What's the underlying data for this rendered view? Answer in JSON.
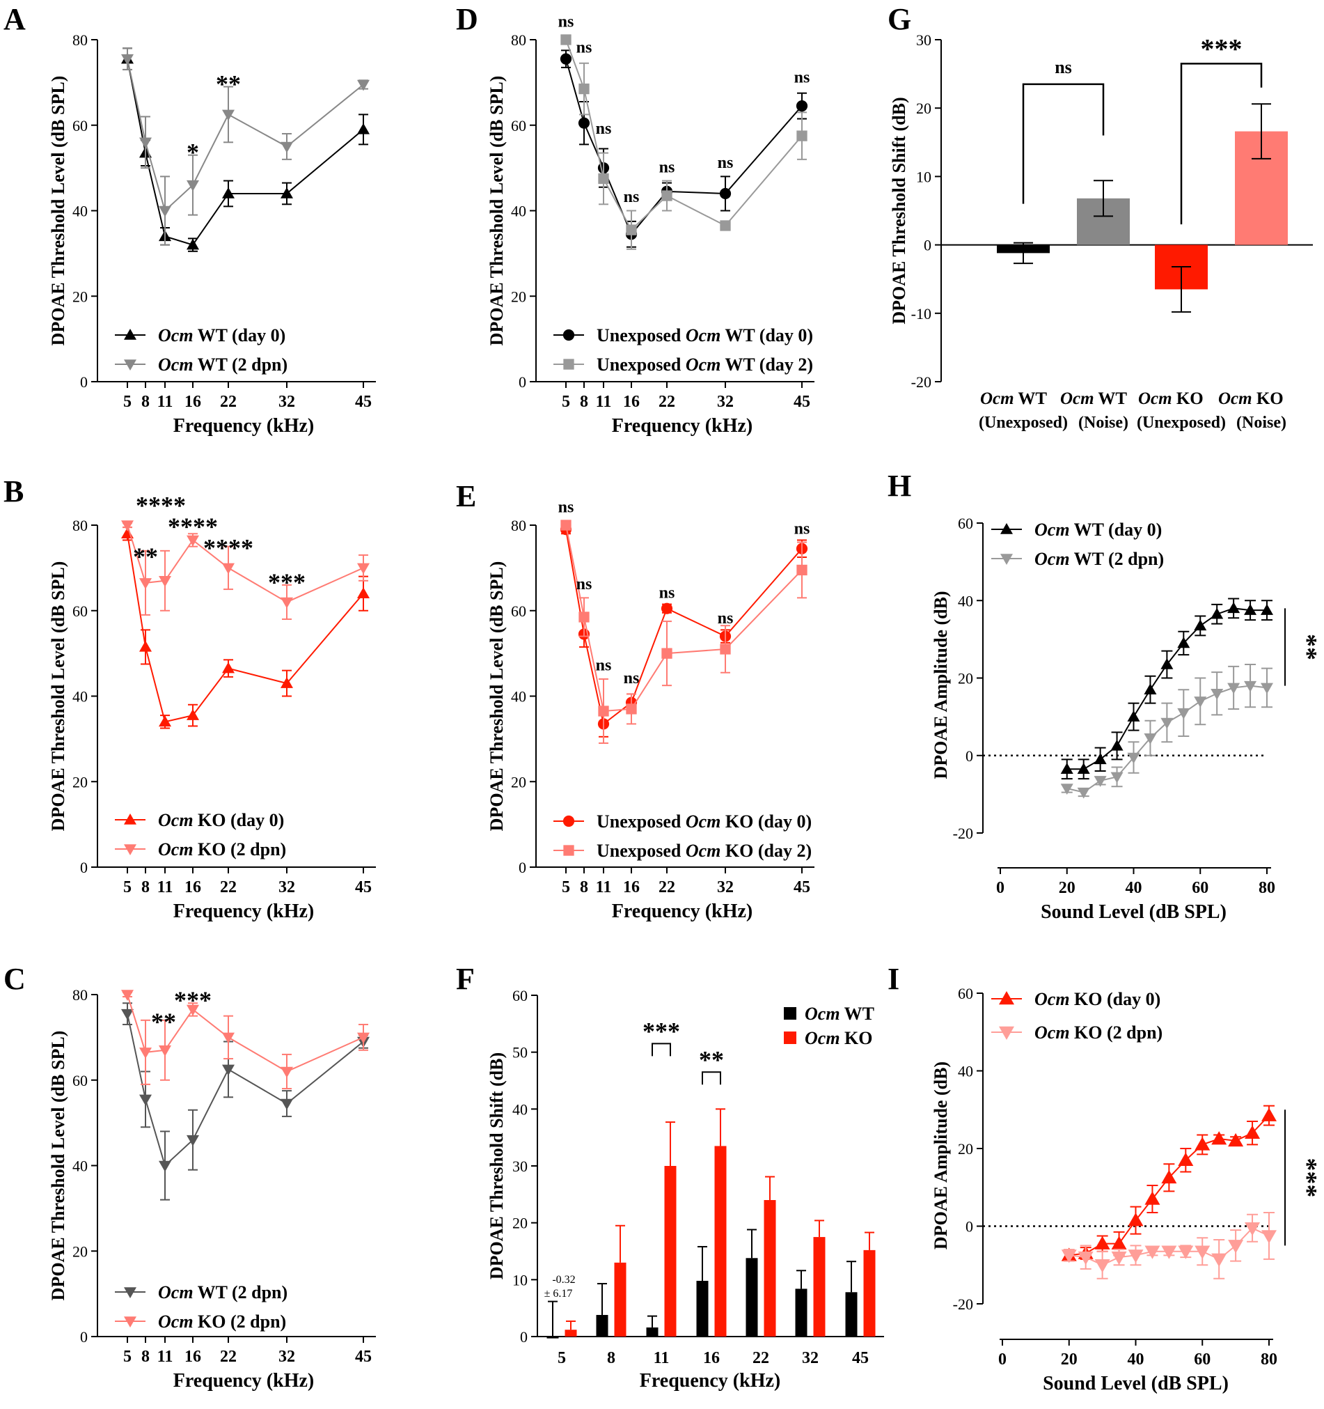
{
  "figure": {
    "colors": {
      "black": "#000000",
      "grey": "#888888",
      "dark_grey": "#555555",
      "red": "#ff1a00",
      "pink": "#ff7b73",
      "light_pink": "#ff9e98"
    }
  },
  "chart_data": [
    {
      "panel": "A",
      "type": "line",
      "ylabel": "DPOAE Threshold Level (dB SPL)",
      "xlabel": "Frequency (kHz)",
      "ylim": [
        0,
        80
      ],
      "yticks": [
        "0",
        "20",
        "40",
        "60",
        "80"
      ],
      "categories": [
        "5",
        "8",
        "11",
        "16",
        "22",
        "32",
        "45"
      ],
      "series": [
        {
          "name": "Ocm WT (day 0)",
          "gene": "Ocm",
          "rest": " WT (day 0)",
          "marker": "tri-up",
          "color": "#000000",
          "values": [
            75.5,
            53.5,
            34,
            32,
            44,
            44,
            59
          ],
          "err": [
            2.5,
            3,
            2,
            1.5,
            3,
            2.5,
            3.5
          ]
        },
        {
          "name": "Ocm WT (2 dpn)",
          "gene": "Ocm",
          "rest": " WT (2 dpn)",
          "marker": "tri-down",
          "color": "#888888",
          "values": [
            75.5,
            56,
            40,
            46,
            62.5,
            55,
            69.5
          ],
          "err": [
            2.5,
            6,
            8,
            7,
            6.5,
            3,
            1
          ]
        }
      ],
      "annotations": [
        {
          "cat": 3,
          "text": "*",
          "y": 54
        },
        {
          "cat": 4,
          "text": "**",
          "y": 70
        }
      ]
    },
    {
      "panel": "B",
      "type": "line",
      "ylabel": "DPOAE Threshold Level (dB SPL)",
      "xlabel": "Frequency (kHz)",
      "ylim": [
        0,
        80
      ],
      "yticks": [
        "0",
        "20",
        "40",
        "60",
        "80"
      ],
      "categories": [
        "5",
        "8",
        "11",
        "16",
        "22",
        "32",
        "45"
      ],
      "series": [
        {
          "name": "Ocm KO (day 0)",
          "gene": "Ocm",
          "rest": " KO (day 0)",
          "marker": "tri-up",
          "color": "#ff1a00",
          "values": [
            78,
            51.5,
            34,
            35.5,
            46.5,
            43,
            64
          ],
          "err": [
            1.5,
            4,
            1.5,
            2.5,
            2,
            3,
            4
          ]
        },
        {
          "name": "Ocm KO (2 dpn)",
          "gene": "Ocm",
          "rest": " KO (2 dpn)",
          "marker": "tri-down",
          "color": "#ff7b73",
          "values": [
            80,
            66.5,
            67,
            76.5,
            70,
            62,
            70
          ],
          "err": [
            0.5,
            7.5,
            7,
            1.5,
            5,
            4,
            3
          ]
        }
      ],
      "annotations": [
        {
          "cat": 1,
          "text": "**",
          "y": 73,
          "dx": 0
        },
        {
          "cat": 1,
          "text": "****",
          "y": 85,
          "dx": 22
        },
        {
          "cat": 3,
          "text": "****",
          "y": 80,
          "dx": 0
        },
        {
          "cat": 4,
          "text": "****",
          "y": 75,
          "dx": 0
        },
        {
          "cat": 5,
          "text": "***",
          "y": 67,
          "dx": 0
        }
      ]
    },
    {
      "panel": "C",
      "type": "line",
      "ylabel": "DPOAE Threshold Level (dB SPL)",
      "xlabel": "Frequency (kHz)",
      "ylim": [
        0,
        80
      ],
      "yticks": [
        "0",
        "20",
        "40",
        "60",
        "80"
      ],
      "categories": [
        "5",
        "8",
        "11",
        "16",
        "22",
        "32",
        "45"
      ],
      "series": [
        {
          "name": "Ocm WT (2 dpn)",
          "gene": "Ocm",
          "rest": " WT (2 dpn)",
          "marker": "tri-down",
          "color": "#555555",
          "values": [
            75.5,
            55.5,
            40,
            46,
            62.5,
            54.5,
            69
          ],
          "err": [
            2.5,
            6.5,
            8,
            7,
            6.5,
            3,
            1.5
          ]
        },
        {
          "name": "Ocm KO (2 dpn)",
          "gene": "Ocm",
          "rest": " KO (2 dpn)",
          "marker": "tri-down",
          "color": "#ff7b73",
          "values": [
            80,
            66.5,
            67,
            76.5,
            70,
            62,
            70
          ],
          "err": [
            0.5,
            7.5,
            7,
            1.5,
            5,
            4,
            3
          ]
        }
      ],
      "annotations": [
        {
          "cat": 2,
          "text": "**",
          "y": 74,
          "dx": -2
        },
        {
          "cat": 3,
          "text": "***",
          "y": 79,
          "dx": 0
        }
      ]
    },
    {
      "panel": "D",
      "type": "line",
      "ylabel": "DPOAE Threshold Level (dB SPL)",
      "xlabel": "Frequency (kHz)",
      "ylim": [
        0,
        80
      ],
      "yticks": [
        "0",
        "20",
        "40",
        "60",
        "80"
      ],
      "categories": [
        "5",
        "8",
        "11",
        "16",
        "22",
        "32",
        "45"
      ],
      "series": [
        {
          "name": "Unexposed Ocm WT (day 0)",
          "pre": "Unexposed ",
          "gene": "Ocm",
          "rest": " WT (day 0)",
          "marker": "circle",
          "color": "#000000",
          "values": [
            75.5,
            60.5,
            50,
            34.5,
            44.5,
            44,
            64.5
          ],
          "err": [
            2,
            5,
            4.5,
            3,
            2,
            4,
            3
          ]
        },
        {
          "name": "Unexposed Ocm WT (day 2)",
          "pre": "Unexposed ",
          "gene": "Ocm",
          "rest": " WT (day 2)",
          "marker": "square",
          "color": "#999999",
          "values": [
            80,
            68.5,
            47.5,
            35.5,
            43.5,
            36.5,
            57.5
          ],
          "err": [
            0.5,
            6,
            6,
            4.5,
            3.5,
            1,
            5.5
          ]
        }
      ],
      "annotations": [
        {
          "cat": 0,
          "text": "ns",
          "y": 83
        },
        {
          "cat": 1,
          "text": "ns",
          "y": 77
        },
        {
          "cat": 2,
          "text": "ns",
          "y": 58
        },
        {
          "cat": 3,
          "text": "ns",
          "y": 42
        },
        {
          "cat": 4,
          "text": "ns",
          "y": 49
        },
        {
          "cat": 5,
          "text": "ns",
          "y": 50
        },
        {
          "cat": 6,
          "text": "ns",
          "y": 70
        }
      ]
    },
    {
      "panel": "E",
      "type": "line",
      "ylabel": "DPOAE Threshold Level (dB SPL)",
      "xlabel": "Frequency (kHz)",
      "ylim": [
        0,
        80
      ],
      "yticks": [
        "0",
        "20",
        "40",
        "60",
        "80"
      ],
      "categories": [
        "5",
        "8",
        "11",
        "16",
        "22",
        "32",
        "45"
      ],
      "series": [
        {
          "name": "Unexposed Ocm KO (day 0)",
          "pre": "Unexposed ",
          "gene": "Ocm",
          "rest": " KO (day 0)",
          "marker": "circle",
          "color": "#ff1a00",
          "values": [
            79,
            54.5,
            33.5,
            38.5,
            60.5,
            54,
            74.5
          ],
          "err": [
            1,
            3,
            3,
            2,
            1,
            1.5,
            2
          ]
        },
        {
          "name": "Unexposed Ocm KO (day 2)",
          "pre": "Unexposed ",
          "gene": "Ocm",
          "rest": " KO (day 2)",
          "marker": "square",
          "color": "#ff7b73",
          "values": [
            80,
            58.5,
            36.5,
            37,
            50,
            51,
            69.5
          ],
          "err": [
            0.5,
            4.5,
            7.5,
            3.5,
            7.5,
            5.5,
            6.5
          ]
        }
      ],
      "annotations": [
        {
          "cat": 0,
          "text": "ns",
          "y": 83
        },
        {
          "cat": 1,
          "text": "ns",
          "y": 65
        },
        {
          "cat": 2,
          "text": "ns",
          "y": 46
        },
        {
          "cat": 3,
          "text": "ns",
          "y": 43
        },
        {
          "cat": 4,
          "text": "ns",
          "y": 63
        },
        {
          "cat": 5,
          "text": "ns",
          "y": 57
        },
        {
          "cat": 6,
          "text": "ns",
          "y": 78
        }
      ]
    },
    {
      "panel": "F",
      "type": "bar",
      "ylabel": "DPOAE Threshold Shift (dB)",
      "xlabel": "Frequency (kHz)",
      "ylim": [
        0,
        60
      ],
      "yticks": [
        "0",
        "10",
        "20",
        "30",
        "40",
        "50",
        "60"
      ],
      "categories": [
        "5",
        "8",
        "11",
        "16",
        "22",
        "32",
        "45"
      ],
      "series": [
        {
          "name": "Ocm WT",
          "gene": "Ocm",
          "rest": " WT",
          "color": "#000000",
          "values": [
            -0.32,
            3.8,
            1.6,
            9.8,
            13.8,
            8.4,
            7.8
          ],
          "err": [
            6.17,
            5.5,
            2,
            6,
            5,
            3.2,
            5.4
          ]
        },
        {
          "name": "Ocm KO",
          "gene": "Ocm",
          "rest": " KO",
          "color": "#ff1a00",
          "values": [
            1.2,
            13,
            30,
            33.5,
            24,
            17.5,
            15.2
          ],
          "err": [
            1.5,
            6.5,
            7.7,
            6.5,
            4.1,
            2.9,
            3.1
          ]
        }
      ],
      "value_label": [
        "-0.32",
        "± 6.17"
      ],
      "brackets": [
        {
          "cat": 2,
          "text": "***",
          "y": 51.5
        },
        {
          "cat": 3,
          "text": "**",
          "y": 46.5
        }
      ]
    },
    {
      "panel": "G",
      "type": "bar",
      "ylabel": "DPOAE Threshold Shift (dB)",
      "ylim": [
        -20,
        30
      ],
      "yticks": [
        "-20",
        "-10",
        "0",
        "10",
        "20",
        "30"
      ],
      "bars": [
        {
          "name": "Ocm WT (Unexposed)",
          "gene": "Ocm",
          "rest": " WT",
          "sub": "(Unexposed)",
          "value": -1.2,
          "err": 1.5,
          "color": "#000000"
        },
        {
          "name": "Ocm WT (Noise)",
          "gene": "Ocm",
          "rest": " WT",
          "sub": "(Noise)",
          "value": 6.8,
          "err": 2.6,
          "color": "#888888"
        },
        {
          "name": "Ocm KO (Unexposed)",
          "gene": "Ocm",
          "rest": " KO",
          "sub": "(Unexposed)",
          "value": -6.5,
          "err": 3.3,
          "color": "#ff1a00"
        },
        {
          "name": "Ocm KO (Noise)",
          "gene": "Ocm",
          "rest": " KO",
          "sub": "(Noise)",
          "value": 16.6,
          "err": 4,
          "color": "#ff7b73"
        }
      ],
      "brackets": [
        {
          "from": 0,
          "to": 1,
          "y": 23.5,
          "text": "ns",
          "from_end": 6,
          "to_end": 16
        },
        {
          "from": 2,
          "to": 3,
          "y": 26.5,
          "text": "***",
          "from_end": 3,
          "to_end": 23
        }
      ]
    },
    {
      "panel": "H",
      "type": "line",
      "ylabel": "DPOAE Amplitude (dB)",
      "xlabel": "Sound Level (dB SPL)",
      "xlim": [
        0,
        80
      ],
      "xticks": [
        "0",
        "20",
        "40",
        "60",
        "80"
      ],
      "ylim": [
        -20,
        60
      ],
      "yticks": [
        "-20",
        "0",
        "20",
        "40",
        "60"
      ],
      "x": [
        20,
        25,
        30,
        35,
        40,
        45,
        50,
        55,
        60,
        65,
        70,
        75,
        80
      ],
      "series": [
        {
          "name": "Ocm WT (day 0)",
          "gene": "Ocm",
          "rest": " WT (day 0)",
          "marker": "tri-up",
          "color": "#000000",
          "values": [
            -3.5,
            -3.5,
            -1,
            2.5,
            10,
            17,
            23.5,
            29,
            33.5,
            36.5,
            38,
            37.5,
            37.5
          ],
          "err": [
            2.5,
            2.5,
            3,
            3.5,
            3.5,
            3.5,
            3.5,
            3,
            2.5,
            2.5,
            2.5,
            2.5,
            2.5
          ]
        },
        {
          "name": "Ocm WT (2 dpn)",
          "gene": "Ocm",
          "rest": " WT (2 dpn)",
          "marker": "tri-down",
          "color": "#999999",
          "values": [
            -8.5,
            -9.5,
            -6.5,
            -5.5,
            -0.5,
            4.5,
            8.5,
            11,
            14,
            16,
            17.5,
            18,
            17.5
          ],
          "err": [
            1,
            1,
            1,
            2.5,
            4,
            4.5,
            5,
            6,
            6,
            5.5,
            5.5,
            5.5,
            5
          ]
        }
      ],
      "hline": 0,
      "significance": "**"
    },
    {
      "panel": "I",
      "type": "line",
      "ylabel": "DPOAE Amplitude (dB)",
      "xlabel": "Sound Level (dB SPL)",
      "xlim": [
        0,
        80
      ],
      "xticks": [
        "0",
        "20",
        "40",
        "60",
        "80"
      ],
      "ylim": [
        -20,
        60
      ],
      "yticks": [
        "-20",
        "0",
        "20",
        "40",
        "60"
      ],
      "x": [
        20,
        25,
        30,
        35,
        40,
        45,
        50,
        55,
        60,
        65,
        70,
        75,
        80
      ],
      "series": [
        {
          "name": "Ocm KO (day 0)",
          "gene": "Ocm",
          "rest": " KO (day 0)",
          "marker": "tri-up",
          "color": "#ff1a00",
          "values": [
            -7.5,
            -7,
            -4.5,
            -4.5,
            1.5,
            7,
            12.5,
            17,
            21,
            22.5,
            22,
            24,
            28.5
          ],
          "err": [
            1,
            1.5,
            2,
            3,
            3.5,
            3.5,
            3.5,
            3,
            2.5,
            1,
            1,
            3,
            2.5
          ]
        },
        {
          "name": "Ocm KO (2 dpn)",
          "gene": "Ocm",
          "rest": " KO (2 dpn)",
          "marker": "tri-down",
          "color": "#ff9e98",
          "values": [
            -7.5,
            -8,
            -10,
            -8,
            -7.5,
            -6.5,
            -6.5,
            -6.5,
            -6.5,
            -8.5,
            -5,
            -0.5,
            -2.5
          ],
          "err": [
            1.5,
            3,
            3.5,
            2,
            2.5,
            1,
            1,
            1.5,
            3.5,
            5,
            4,
            3.5,
            6
          ]
        }
      ],
      "hline": 0,
      "significance": "***"
    }
  ]
}
